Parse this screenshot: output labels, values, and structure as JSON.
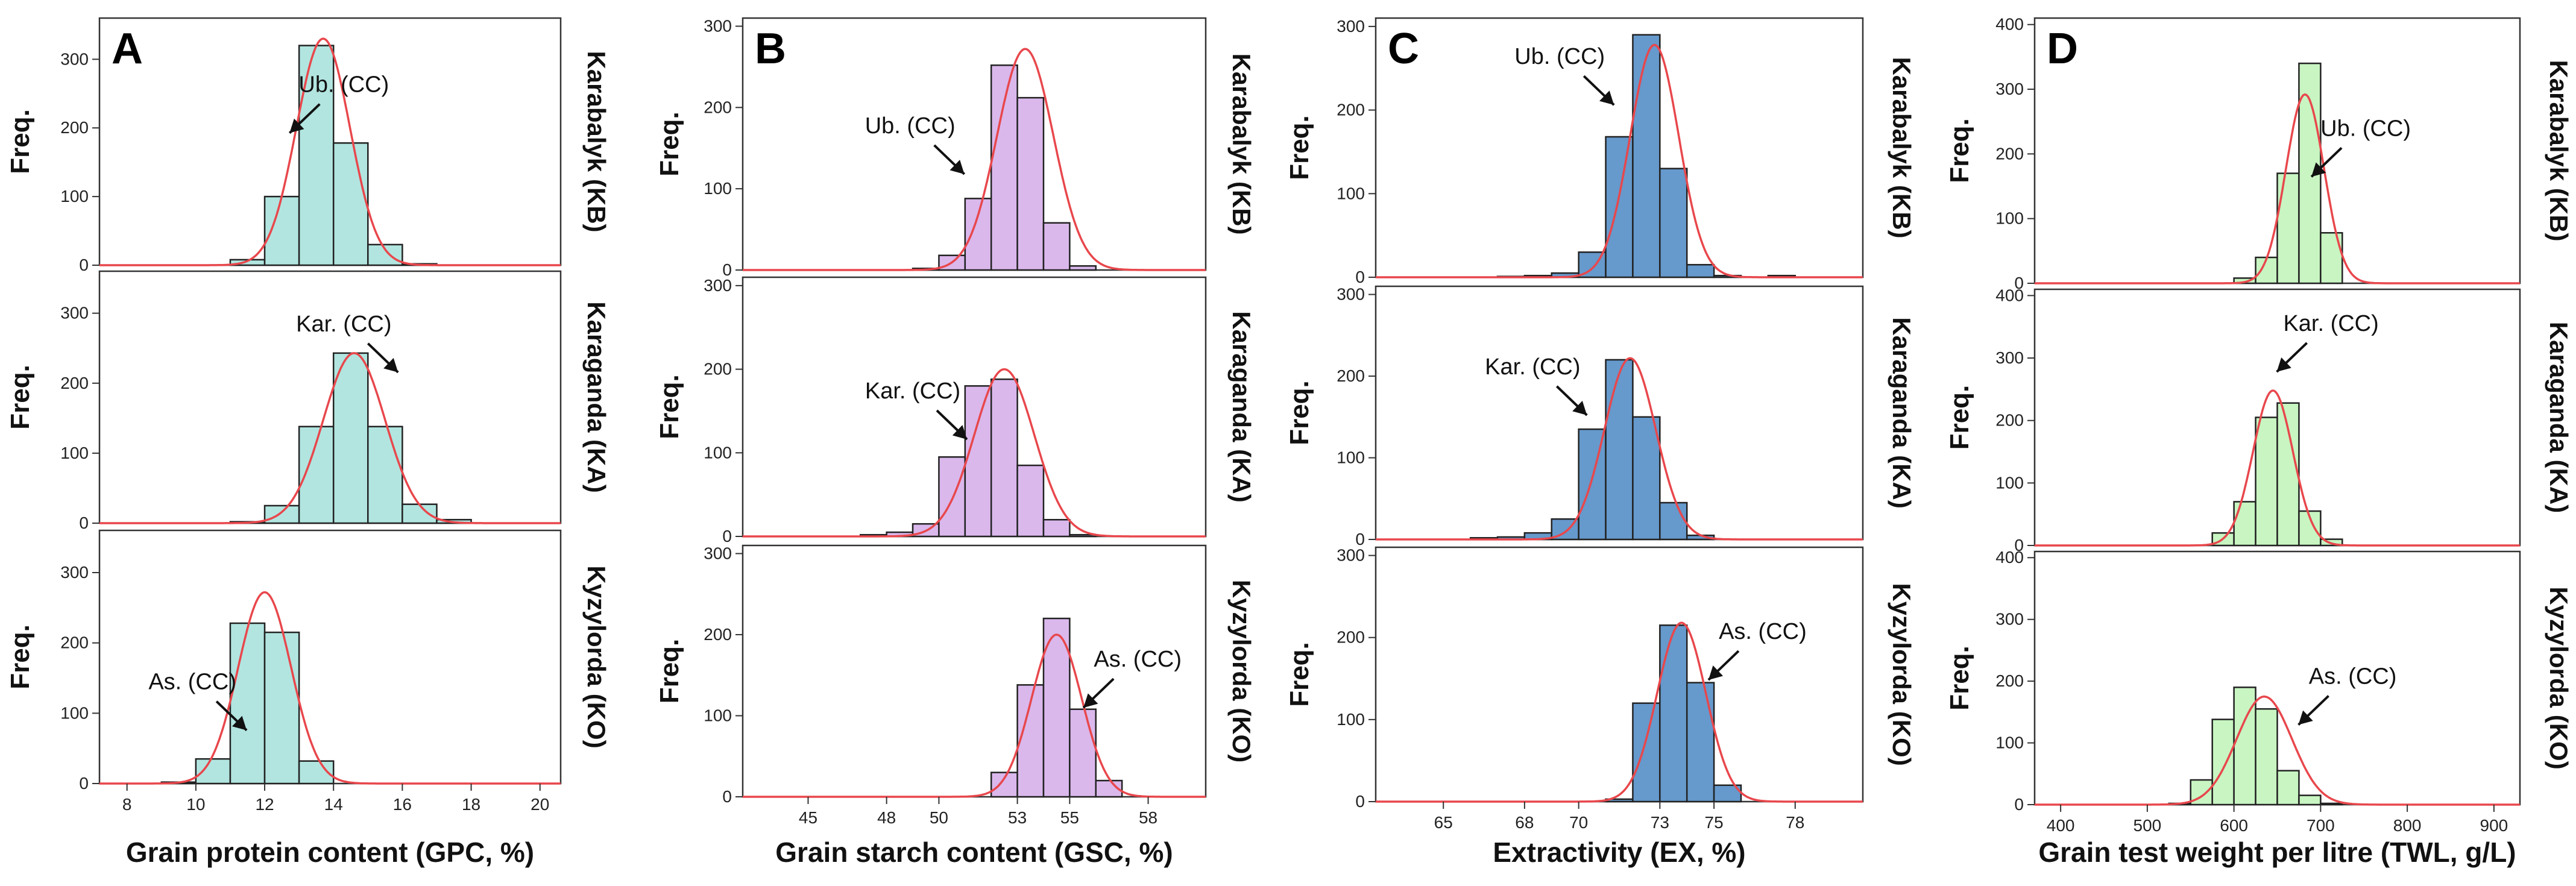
{
  "chart_data": [
    {
      "type": "bar",
      "panel_letter": "A",
      "xlabel": "Grain protein content (GPC, %)",
      "ylabel": "Freq.",
      "xlim": [
        7.2,
        20.6
      ],
      "xticks": [
        8,
        10,
        12,
        14,
        16,
        18,
        20
      ],
      "ylim": [
        0,
        360
      ],
      "yticks": [
        0,
        100,
        200,
        300
      ],
      "bin_width": 1,
      "facecolor": "#b2e5e0",
      "curvecolor": "#e8474c",
      "facets": [
        {
          "label": "Karabalyk (KB)",
          "bins": [
            {
              "x0": 11,
              "count": 8
            },
            {
              "x0": 12,
              "count": 100
            },
            {
              "x0": 13,
              "count": 320
            },
            {
              "x0": 14,
              "count": 178
            },
            {
              "x0": 15,
              "count": 30
            },
            {
              "x0": 16,
              "count": 2
            }
          ],
          "normal": {
            "mean": 13.7,
            "sd": 0.78,
            "peak": 330
          },
          "annotation": {
            "text": "Ub. (CC)",
            "x": 14.3,
            "y": 240
          }
        },
        {
          "label": "Karaganda (KA)",
          "bins": [
            {
              "x0": 11,
              "count": 2
            },
            {
              "x0": 12,
              "count": 25
            },
            {
              "x0": 13,
              "count": 138
            },
            {
              "x0": 14,
              "count": 243
            },
            {
              "x0": 15,
              "count": 138
            },
            {
              "x0": 16,
              "count": 27
            },
            {
              "x0": 17,
              "count": 5
            }
          ],
          "normal": {
            "mean": 14.6,
            "sd": 0.9,
            "peak": 243
          },
          "annotation": {
            "text": "Kar. (CC)",
            "x": 14.3,
            "y": 262
          }
        },
        {
          "label": "Kyzylorda (KO)",
          "bins": [
            {
              "x0": 9,
              "count": 2
            },
            {
              "x0": 10,
              "count": 35
            },
            {
              "x0": 11,
              "count": 228
            },
            {
              "x0": 12,
              "count": 215
            },
            {
              "x0": 13,
              "count": 32
            }
          ],
          "normal": {
            "mean": 12.0,
            "sd": 0.77,
            "peak": 272
          },
          "annotation": {
            "text": "As. (CC)",
            "x": 9.9,
            "y": 122
          }
        }
      ]
    },
    {
      "type": "bar",
      "panel_letter": "B",
      "xlabel": "Grain starch content (GSC, %)",
      "ylabel": "Freq.",
      "xlim": [
        42.5,
        60.2
      ],
      "xticks": [
        45,
        48,
        50,
        53,
        55,
        58
      ],
      "ylim": [
        0,
        310
      ],
      "yticks": [
        0,
        100,
        200,
        300
      ],
      "bin_width": 1,
      "facecolor": "#dab8ec",
      "curvecolor": "#e8474c",
      "facets": [
        {
          "label": "Karabalyk (KB)",
          "bins": [
            {
              "x0": 49,
              "count": 2
            },
            {
              "x0": 50,
              "count": 18
            },
            {
              "x0": 51,
              "count": 88
            },
            {
              "x0": 52,
              "count": 252
            },
            {
              "x0": 53,
              "count": 212
            },
            {
              "x0": 54,
              "count": 58
            },
            {
              "x0": 55,
              "count": 5
            }
          ],
          "normal": {
            "mean": 53.3,
            "sd": 1.08,
            "peak": 272
          },
          "annotation": {
            "text": "Ub. (CC)",
            "x": 48.9,
            "y": 158
          }
        },
        {
          "label": "Karaganda (KA)",
          "bins": [
            {
              "x0": 47,
              "count": 2
            },
            {
              "x0": 48,
              "count": 5
            },
            {
              "x0": 49,
              "count": 15
            },
            {
              "x0": 50,
              "count": 95
            },
            {
              "x0": 51,
              "count": 180
            },
            {
              "x0": 52,
              "count": 188
            },
            {
              "x0": 53,
              "count": 85
            },
            {
              "x0": 54,
              "count": 20
            },
            {
              "x0": 55,
              "count": 2
            }
          ],
          "normal": {
            "mean": 52.5,
            "sd": 1.15,
            "peak": 200
          },
          "annotation": {
            "text": "Kar. (CC)",
            "x": 49.0,
            "y": 155
          }
        },
        {
          "label": "Kyzylorda (KO)",
          "bins": [
            {
              "x0": 52,
              "count": 30
            },
            {
              "x0": 53,
              "count": 138
            },
            {
              "x0": 54,
              "count": 220
            },
            {
              "x0": 55,
              "count": 108
            },
            {
              "x0": 56,
              "count": 20
            }
          ],
          "normal": {
            "mean": 54.5,
            "sd": 0.96,
            "peak": 200
          },
          "annotation": {
            "text": "As. (CC)",
            "x": 57.6,
            "y": 150
          }
        }
      ]
    },
    {
      "type": "bar",
      "panel_letter": "C",
      "xlabel": "Extractivity (EX, %)",
      "ylabel": "Freq.",
      "xlim": [
        62.5,
        80.5
      ],
      "xticks": [
        65,
        68,
        70,
        73,
        75,
        78
      ],
      "ylim": [
        0,
        310
      ],
      "yticks": [
        0,
        100,
        200,
        300
      ],
      "bin_width": 1,
      "facecolor": "#6699cc",
      "curvecolor": "#e8474c",
      "facets": [
        {
          "label": "Karabalyk (KB)",
          "bins": [
            {
              "x0": 67,
              "count": 1
            },
            {
              "x0": 68,
              "count": 2
            },
            {
              "x0": 69,
              "count": 5
            },
            {
              "x0": 70,
              "count": 30
            },
            {
              "x0": 71,
              "count": 168
            },
            {
              "x0": 72,
              "count": 290
            },
            {
              "x0": 73,
              "count": 130
            },
            {
              "x0": 74,
              "count": 15
            },
            {
              "x0": 75,
              "count": 2
            },
            {
              "x0": 77,
              "count": 2
            }
          ],
          "normal": {
            "mean": 72.8,
            "sd": 0.9,
            "peak": 278
          },
          "annotation": {
            "text": "Ub. (CC)",
            "x": 69.3,
            "y": 245
          }
        },
        {
          "label": "Karaganda (KA)",
          "bins": [
            {
              "x0": 66,
              "count": 2
            },
            {
              "x0": 67,
              "count": 3
            },
            {
              "x0": 68,
              "count": 8
            },
            {
              "x0": 69,
              "count": 25
            },
            {
              "x0": 70,
              "count": 135
            },
            {
              "x0": 71,
              "count": 220
            },
            {
              "x0": 72,
              "count": 150
            },
            {
              "x0": 73,
              "count": 45
            },
            {
              "x0": 74,
              "count": 5
            }
          ],
          "normal": {
            "mean": 71.9,
            "sd": 0.95,
            "peak": 222
          },
          "annotation": {
            "text": "Kar. (CC)",
            "x": 68.3,
            "y": 192
          }
        },
        {
          "label": "Kyzylorda (KO)",
          "bins": [
            {
              "x0": 71,
              "count": 3
            },
            {
              "x0": 72,
              "count": 120
            },
            {
              "x0": 73,
              "count": 215
            },
            {
              "x0": 74,
              "count": 145
            },
            {
              "x0": 75,
              "count": 20
            }
          ],
          "normal": {
            "mean": 73.8,
            "sd": 0.9,
            "peak": 218
          },
          "annotation": {
            "text": "As. (CC)",
            "x": 76.8,
            "y": 188
          }
        }
      ]
    },
    {
      "type": "bar",
      "panel_letter": "D",
      "xlabel": "Grain test weight per litre (TWL, g/L)",
      "ylabel": "Freq.",
      "xlim": [
        370,
        930
      ],
      "xticks": [
        400,
        500,
        600,
        700,
        800,
        900
      ],
      "ylim": [
        0,
        410
      ],
      "yticks": [
        0,
        100,
        200,
        300,
        400
      ],
      "bin_width": 25,
      "facecolor": "#c8f5c2",
      "curvecolor": "#e8474c",
      "facets": [
        {
          "label": "Karabalyk (KB)",
          "bins": [
            {
              "x0": 600,
              "count": 8
            },
            {
              "x0": 625,
              "count": 40
            },
            {
              "x0": 650,
              "count": 170
            },
            {
              "x0": 675,
              "count": 340
            },
            {
              "x0": 700,
              "count": 78
            }
          ],
          "normal": {
            "mean": 682,
            "sd": 22,
            "peak": 292
          },
          "annotation": {
            "text": "Ub. (CC)",
            "x": 752,
            "y": 215
          }
        },
        {
          "label": "Karaganda (KA)",
          "bins": [
            {
              "x0": 575,
              "count": 20
            },
            {
              "x0": 600,
              "count": 70
            },
            {
              "x0": 625,
              "count": 205
            },
            {
              "x0": 650,
              "count": 228
            },
            {
              "x0": 675,
              "count": 55
            },
            {
              "x0": 700,
              "count": 10
            }
          ],
          "normal": {
            "mean": 645,
            "sd": 23,
            "peak": 248
          },
          "annotation": {
            "text": "Kar. (CC)",
            "x": 712,
            "y": 330
          }
        },
        {
          "label": "Kyzylorda (KO)",
          "bins": [
            {
              "x0": 525,
              "count": 2
            },
            {
              "x0": 550,
              "count": 40
            },
            {
              "x0": 575,
              "count": 138
            },
            {
              "x0": 600,
              "count": 190
            },
            {
              "x0": 625,
              "count": 155
            },
            {
              "x0": 650,
              "count": 55
            },
            {
              "x0": 675,
              "count": 15
            },
            {
              "x0": 700,
              "count": 2
            }
          ],
          "normal": {
            "mean": 635,
            "sd": 32,
            "peak": 175
          },
          "annotation": {
            "text": "As. (CC)",
            "x": 737,
            "y": 182
          }
        }
      ]
    }
  ]
}
